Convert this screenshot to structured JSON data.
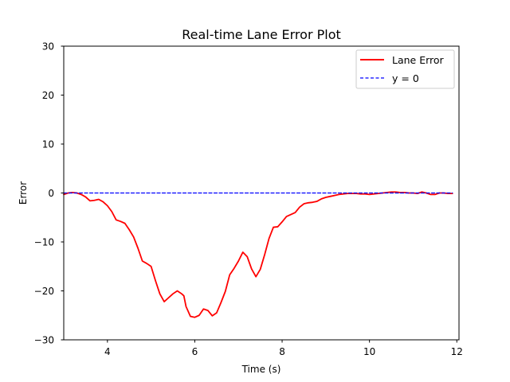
{
  "chart_data": {
    "type": "line",
    "title": "Real-time Lane Error Plot",
    "xlabel": "Time (s)",
    "ylabel": "Error",
    "xlim": [
      3.0,
      12.05
    ],
    "ylim": [
      -30,
      30
    ],
    "xticks": [
      4,
      6,
      8,
      10,
      12
    ],
    "yticks": [
      -30,
      -20,
      -10,
      0,
      10,
      20,
      30
    ],
    "grid": false,
    "legend_position": "top-right",
    "series": [
      {
        "name": "Lane Error",
        "color": "#ff0000",
        "style": "solid",
        "x": [
          3.0,
          3.1,
          3.2,
          3.3,
          3.4,
          3.5,
          3.6,
          3.7,
          3.8,
          3.9,
          4.0,
          4.1,
          4.2,
          4.3,
          4.4,
          4.5,
          4.6,
          4.7,
          4.8,
          4.9,
          5.0,
          5.1,
          5.2,
          5.3,
          5.4,
          5.5,
          5.6,
          5.7,
          5.75,
          5.8,
          5.9,
          6.0,
          6.1,
          6.2,
          6.3,
          6.4,
          6.5,
          6.6,
          6.7,
          6.8,
          6.9,
          7.0,
          7.1,
          7.2,
          7.3,
          7.4,
          7.5,
          7.6,
          7.7,
          7.8,
          7.9,
          8.0,
          8.1,
          8.2,
          8.3,
          8.4,
          8.5,
          8.6,
          8.7,
          8.8,
          8.9,
          9.0,
          9.1,
          9.2,
          9.3,
          9.4,
          9.5,
          9.6,
          9.7,
          9.8,
          9.9,
          10.0,
          10.1,
          10.2,
          10.3,
          10.4,
          10.5,
          10.6,
          10.7,
          10.8,
          10.9,
          11.0,
          11.1,
          11.2,
          11.3,
          11.4,
          11.5,
          11.6,
          11.7,
          11.8,
          11.9
        ],
        "y": [
          -0.3,
          0.0,
          0.1,
          0.0,
          -0.3,
          -0.8,
          -1.6,
          -1.5,
          -1.3,
          -1.8,
          -2.6,
          -3.8,
          -5.5,
          -5.8,
          -6.2,
          -7.5,
          -9.0,
          -11.3,
          -13.9,
          -14.4,
          -15.0,
          -17.9,
          -20.6,
          -22.2,
          -21.4,
          -20.6,
          -20.0,
          -20.6,
          -21.0,
          -23.2,
          -25.2,
          -25.4,
          -25.0,
          -23.7,
          -24.0,
          -25.1,
          -24.5,
          -22.4,
          -20.1,
          -16.7,
          -15.4,
          -13.9,
          -12.1,
          -13.0,
          -15.5,
          -17.1,
          -15.6,
          -12.6,
          -9.3,
          -7.0,
          -6.9,
          -5.9,
          -4.8,
          -4.4,
          -4.0,
          -2.9,
          -2.2,
          -2.0,
          -1.9,
          -1.7,
          -1.2,
          -0.9,
          -0.7,
          -0.5,
          -0.3,
          -0.2,
          -0.1,
          -0.1,
          -0.1,
          -0.2,
          -0.2,
          -0.3,
          -0.2,
          -0.1,
          0.0,
          0.1,
          0.2,
          0.2,
          0.1,
          0.1,
          0.0,
          0.0,
          -0.1,
          0.2,
          0.0,
          -0.3,
          -0.3,
          0.0,
          0.0,
          -0.1,
          -0.1
        ]
      },
      {
        "name": "y = 0",
        "color": "#0000ff",
        "style": "dashed",
        "x": [
          3.0,
          11.9
        ],
        "y": [
          0,
          0
        ]
      }
    ]
  }
}
